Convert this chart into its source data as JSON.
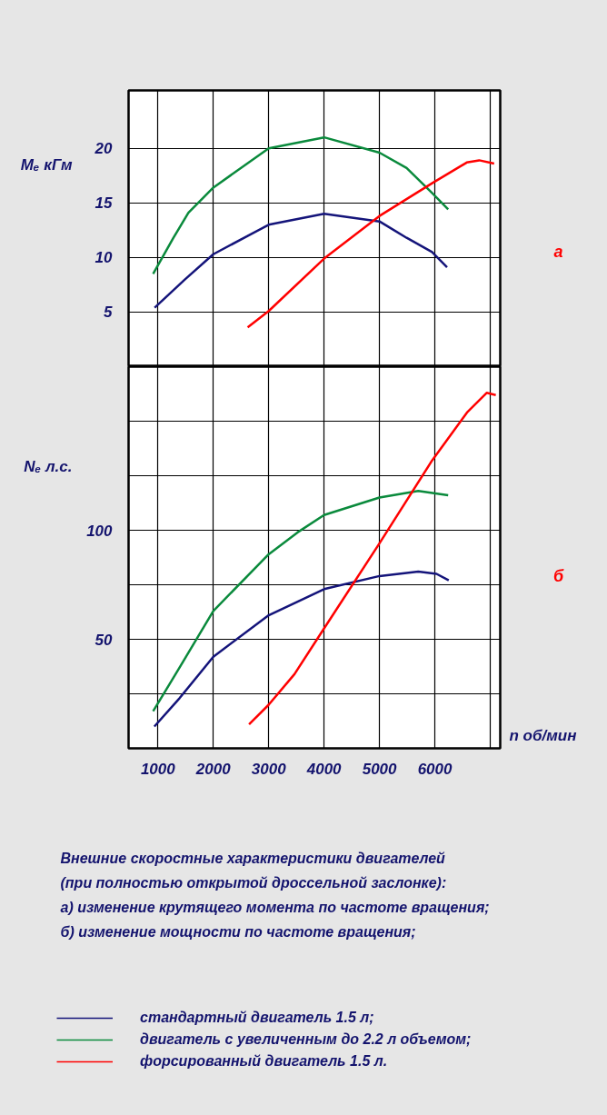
{
  "chart_data": [
    {
      "type": "line",
      "annotations": [
        "а"
      ],
      "ylabel": "Mₑ кГм",
      "xlim": [
        470,
        7180
      ],
      "ylim": [
        0,
        25.3
      ],
      "xticks": [
        1000,
        2000,
        3000,
        4000,
        5000,
        6000,
        {
          "value": 7000,
          "label": null
        }
      ],
      "yticks": [
        5,
        10,
        15,
        20
      ],
      "grid": true,
      "tick_labels": "y",
      "series": [
        {
          "color": "#14147a",
          "x": [
            940,
            1490,
            2000,
            3000,
            4000,
            5000,
            5490,
            5950,
            6220
          ],
          "values": [
            5.4,
            8.0,
            10.3,
            13.0,
            14.0,
            13.3,
            11.8,
            10.5,
            9.1
          ]
        },
        {
          "color": "#0a8a3c",
          "x": [
            913,
            1280,
            1550,
            2000,
            3000,
            4000,
            5000,
            5490,
            5950,
            6240
          ],
          "values": [
            8.5,
            11.8,
            14.1,
            16.4,
            20.0,
            21.0,
            19.6,
            18.2,
            15.9,
            14.4
          ]
        },
        {
          "color": "#ff0000",
          "x": [
            2620,
            3000,
            4000,
            5000,
            5950,
            6575,
            6800,
            7070
          ],
          "values": [
            3.6,
            5.1,
            9.9,
            13.8,
            16.8,
            18.7,
            18.9,
            18.6
          ]
        }
      ]
    },
    {
      "type": "line",
      "xlabel": "n об/мин",
      "ylabel": "Nₑ л.с.",
      "xlim": [
        470,
        7180
      ],
      "ylim": [
        0,
        175
      ],
      "xticks": [
        1000,
        2000,
        3000,
        4000,
        5000,
        6000,
        {
          "value": 7000,
          "label": null
        }
      ],
      "yticks": [
        {
          "value": 25,
          "label": null
        },
        50,
        {
          "value": 75,
          "label": null
        },
        100,
        {
          "value": 125,
          "label": null
        },
        {
          "value": 150,
          "label": null
        }
      ],
      "grid": true,
      "legend": "bottom",
      "annotations": [
        "б",
        "Внешние скоростные характеристики двигателей",
        "(при полностью открытой дроссельной заслонке):",
        "а) изменение крутящего момента по частоте вращения;",
        "б) изменение мощности по частоте вращения;"
      ],
      "series": [
        {
          "name": "стандартный двигатель 1.5 л;",
          "color": "#14147a",
          "x": [
            935,
            1390,
            2000,
            3000,
            4000,
            5000,
            5700,
            6030,
            6250
          ],
          "values": [
            10,
            23,
            42,
            61,
            73,
            79,
            81,
            80,
            77
          ]
        },
        {
          "name": "двигатель с увеличенным до 2.2 л объемом;",
          "color": "#0a8a3c",
          "x": [
            913,
            1390,
            2000,
            3000,
            3520,
            4000,
            5000,
            5700,
            6240
          ],
          "values": [
            17,
            37,
            63,
            89,
            99,
            107,
            115,
            118,
            116
          ]
        },
        {
          "name": "форсированный двигатель 1.5 л.",
          "color": "#ff0000",
          "x": [
            2645,
            3000,
            3465,
            4000,
            5000,
            5950,
            6580,
            6935,
            7100
          ],
          "values": [
            11,
            20,
            34,
            55,
            94,
            132,
            154,
            163,
            162
          ]
        }
      ]
    }
  ]
}
